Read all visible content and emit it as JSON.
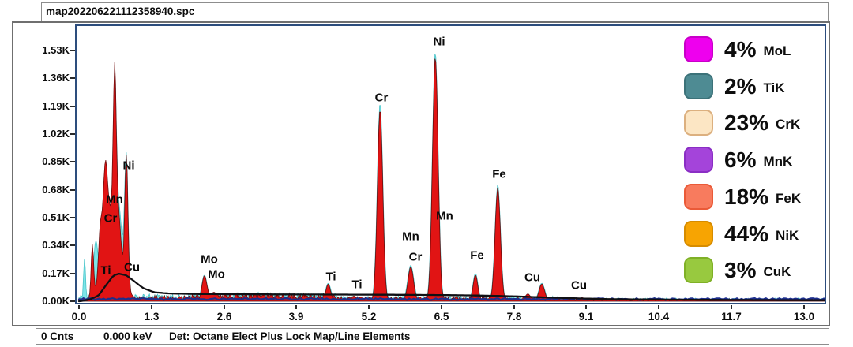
{
  "window": {
    "title": "map202206221112358940.spc"
  },
  "status": {
    "counts": "0 Cnts",
    "kev": "0.000 keV",
    "detector": "Det: Octane Elect Plus Lock Map/Line Elements"
  },
  "chart_data": {
    "type": "area",
    "title": "EDS spectrum of map202206221112358940.spc",
    "x_axis": {
      "unit": "keV",
      "min": 0,
      "max": 13.38,
      "ticks": [
        "0.0",
        "1.3",
        "2.6",
        "3.9",
        "5.2",
        "6.5",
        "7.8",
        "9.1",
        "10.4",
        "11.7",
        "13.0"
      ]
    },
    "y_axis": {
      "unit": "counts",
      "min": 0,
      "max": 1.53,
      "ticks": [
        "0.00K",
        "0.17K",
        "0.34K",
        "0.51K",
        "0.68K",
        "0.85K",
        "1.02K",
        "1.19K",
        "1.36K",
        "1.53K"
      ]
    },
    "legend": {
      "position": "top-right",
      "items": [
        {
          "pct": "4%",
          "label": "MoL",
          "color": "#ee00ee",
          "border": "#c800c8"
        },
        {
          "pct": "2%",
          "label": "TiK",
          "color": "#4e8b93",
          "border": "#3c7279"
        },
        {
          "pct": "23%",
          "label": "CrK",
          "color": "#fce6c4",
          "border": "#dcb07f"
        },
        {
          "pct": "6%",
          "label": "MnK",
          "color": "#a444da",
          "border": "#8a2ec4"
        },
        {
          "pct": "18%",
          "label": "FeK",
          "color": "#f87b5e",
          "border": "#ea5a38"
        },
        {
          "pct": "44%",
          "label": "NiK",
          "color": "#f7a402",
          "border": "#d68c00"
        },
        {
          "pct": "3%",
          "label": "CuK",
          "color": "#98c93f",
          "border": "#7fb026"
        }
      ]
    },
    "colors": {
      "spectrum_fill": "#e11414",
      "spectrum_edge": "#6d0b0b",
      "raw_overlay_fill": "#7de6e8",
      "raw_overlay_edge": "#49c3c9",
      "background_model": "#101014",
      "baseline_trace": "#1d2e8c",
      "plot_border": "#2d4d7d"
    },
    "peaks_spectrum": [
      [
        0.24,
        0.31,
        0.022
      ],
      [
        0.38,
        0.26,
        0.03
      ],
      [
        0.47,
        0.44,
        0.038
      ],
      [
        0.55,
        0.3,
        0.1
      ],
      [
        0.6,
        0.25,
        0.18
      ],
      [
        0.64,
        0.88,
        0.026
      ],
      [
        0.7,
        0.28,
        0.05
      ],
      [
        0.85,
        0.79,
        0.028
      ],
      [
        2.25,
        0.155,
        0.045
      ],
      [
        2.42,
        0.055,
        0.06
      ],
      [
        4.47,
        0.105,
        0.042
      ],
      [
        4.93,
        0.032,
        0.04
      ],
      [
        5.4,
        1.17,
        0.048
      ],
      [
        5.95,
        0.21,
        0.05
      ],
      [
        6.39,
        1.49,
        0.05
      ],
      [
        7.11,
        0.16,
        0.042
      ],
      [
        7.51,
        0.69,
        0.048
      ],
      [
        8.05,
        0.045,
        0.05
      ],
      [
        8.3,
        0.105,
        0.05
      ],
      [
        9.02,
        0.022,
        0.06
      ]
    ],
    "peaks_raw_overlay": [
      [
        0.1,
        0.26,
        0.018
      ],
      [
        0.3,
        0.33,
        0.04
      ],
      [
        0.47,
        0.52,
        0.05
      ],
      [
        0.55,
        0.33,
        0.12
      ],
      [
        0.64,
        0.94,
        0.03
      ],
      [
        0.72,
        0.45,
        0.06
      ],
      [
        0.85,
        0.85,
        0.032
      ],
      [
        2.25,
        0.16,
        0.05
      ],
      [
        4.47,
        0.11,
        0.05
      ],
      [
        5.4,
        1.21,
        0.05
      ],
      [
        5.95,
        0.22,
        0.055
      ],
      [
        6.39,
        1.52,
        0.052
      ],
      [
        7.11,
        0.17,
        0.046
      ],
      [
        7.51,
        0.71,
        0.05
      ],
      [
        8.3,
        0.11,
        0.055
      ]
    ],
    "background_model_points": [
      [
        0.02,
        0
      ],
      [
        0.2,
        0.012
      ],
      [
        0.35,
        0.035
      ],
      [
        0.5,
        0.105
      ],
      [
        0.62,
        0.158
      ],
      [
        0.72,
        0.168
      ],
      [
        0.85,
        0.158
      ],
      [
        1.0,
        0.12
      ],
      [
        1.15,
        0.08
      ],
      [
        1.35,
        0.055
      ],
      [
        1.6,
        0.048
      ],
      [
        2.0,
        0.045
      ],
      [
        2.6,
        0.043
      ],
      [
        3.5,
        0.042
      ],
      [
        4.5,
        0.041
      ],
      [
        5.5,
        0.04
      ],
      [
        6.5,
        0.038
      ],
      [
        7.0,
        0.036
      ],
      [
        7.5,
        0.033
      ],
      [
        8.0,
        0.028
      ],
      [
        8.5,
        0.022
      ],
      [
        9.0,
        0.017
      ],
      [
        9.5,
        0.013
      ],
      [
        10.5,
        0.01
      ],
      [
        11.5,
        0.008
      ],
      [
        12.5,
        0.007
      ],
      [
        13.38,
        0.006
      ]
    ],
    "noise_zones_spectrum": [
      [
        0,
        0.9,
        0.02
      ],
      [
        0.9,
        2.0,
        0.035
      ],
      [
        2.0,
        4.6,
        0.05
      ],
      [
        4.6,
        8.6,
        0.028
      ],
      [
        8.6,
        13.38,
        0.016
      ]
    ],
    "noise_zones_overlay": [
      [
        0,
        0.9,
        0.05
      ],
      [
        0.9,
        2.0,
        0.045
      ],
      [
        2.0,
        4.6,
        0.055
      ],
      [
        4.6,
        8.6,
        0.032
      ],
      [
        8.6,
        13.38,
        0.02
      ]
    ],
    "annotations": [
      {
        "t": "Mn",
        "k": 0.64,
        "c": 0.62
      },
      {
        "t": "Cr",
        "k": 0.57,
        "c": 0.505
      },
      {
        "t": "Ni",
        "k": 0.89,
        "c": 0.83
      },
      {
        "t": "Ti",
        "k": 0.48,
        "c": 0.188
      },
      {
        "t": "Cu",
        "k": 0.95,
        "c": 0.207
      },
      {
        "t": "Mo",
        "k": 2.34,
        "c": 0.255
      },
      {
        "t": "Mo",
        "k": 2.47,
        "c": 0.164
      },
      {
        "t": "Ti",
        "k": 4.52,
        "c": 0.149
      },
      {
        "t": "Ti",
        "k": 4.99,
        "c": 0.101
      },
      {
        "t": "Cr",
        "k": 5.43,
        "c": 1.242
      },
      {
        "t": "Mn",
        "k": 5.95,
        "c": 0.395
      },
      {
        "t": "Cr",
        "k": 6.03,
        "c": 0.269
      },
      {
        "t": "Ni",
        "k": 6.46,
        "c": 1.583
      },
      {
        "t": "Mn",
        "k": 6.56,
        "c": 0.52
      },
      {
        "t": "Fe",
        "k": 7.14,
        "c": 0.279
      },
      {
        "t": "Fe",
        "k": 7.54,
        "c": 0.775
      },
      {
        "t": "Cu",
        "k": 8.13,
        "c": 0.144
      },
      {
        "t": "Cu",
        "k": 8.97,
        "c": 0.096
      }
    ]
  }
}
